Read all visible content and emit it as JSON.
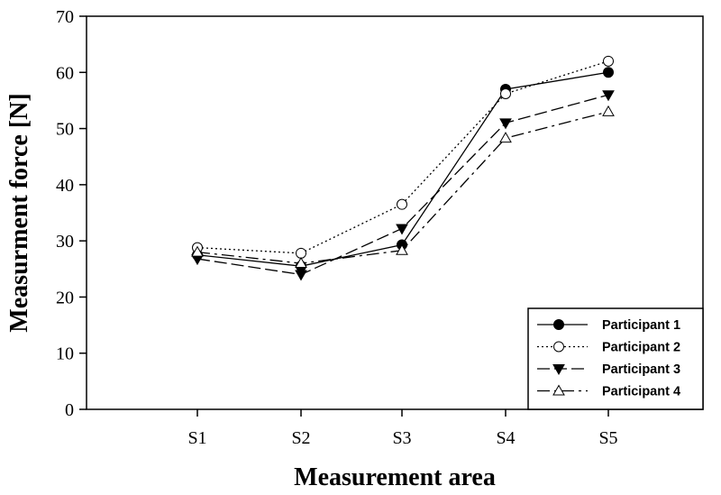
{
  "chart_data": {
    "type": "line",
    "title": "",
    "xlabel": "Measurement area",
    "ylabel": "Measurment force [N]",
    "categories": [
      "S1",
      "S2",
      "S3",
      "S4",
      "S5"
    ],
    "ylim": [
      0,
      70
    ],
    "yticks": [
      0,
      10,
      20,
      30,
      40,
      50,
      60,
      70
    ],
    "grid": false,
    "legend_position": "bottom-right",
    "series": [
      {
        "name": "Participant 1",
        "values": [
          27.5,
          25.5,
          29.3,
          57.0,
          60.0
        ],
        "marker": "filled-circle",
        "dash": "solid"
      },
      {
        "name": "Participant 2",
        "values": [
          28.8,
          27.8,
          36.5,
          56.2,
          62.0
        ],
        "marker": "open-circle",
        "dash": "dotted"
      },
      {
        "name": "Participant 3",
        "values": [
          26.8,
          24.0,
          32.2,
          51.0,
          56.0
        ],
        "marker": "filled-triangle-down",
        "dash": "long-dash"
      },
      {
        "name": "Participant 4",
        "values": [
          28.0,
          26.0,
          28.3,
          48.3,
          53.0
        ],
        "marker": "open-triangle-up",
        "dash": "dash-dot"
      }
    ]
  }
}
